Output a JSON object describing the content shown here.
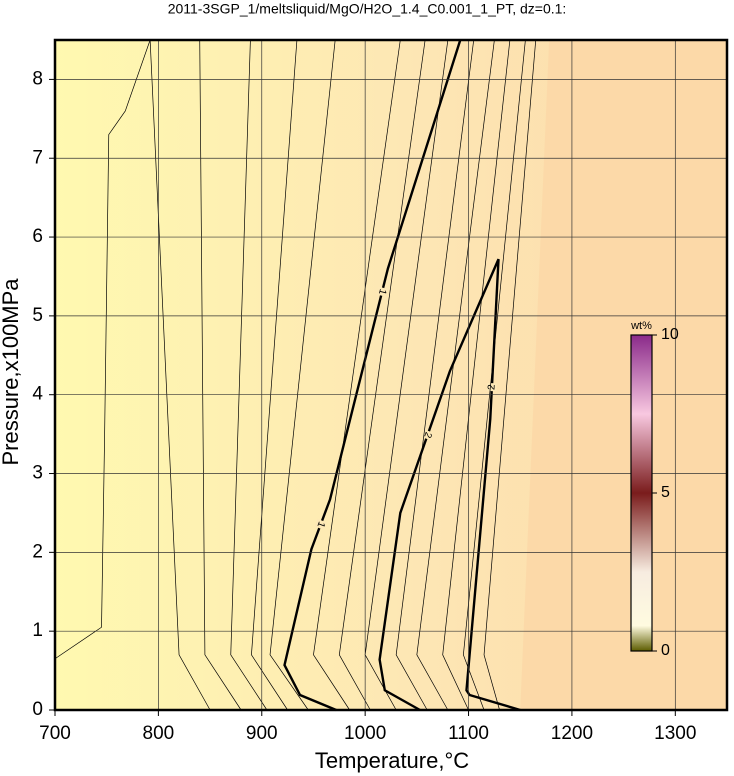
{
  "chart_data": {
    "type": "contour",
    "title": "2011-3SGP_1/meltsliquid/MgO/H2O_1.4_C0.001_1_PT, dz=0.1:",
    "xlabel": "Temperature,°C",
    "ylabel": "Pressure,x100MPa",
    "xlim": [
      700,
      1350
    ],
    "ylim": [
      0,
      8.5
    ],
    "xticks": [
      700,
      800,
      900,
      1000,
      1100,
      1200,
      1300
    ],
    "yticks": [
      0,
      1,
      2,
      3,
      4,
      5,
      6,
      7,
      8
    ],
    "grid": true,
    "contours": [
      {
        "level": 1,
        "x": [
          972,
          937,
          922,
          948,
          966,
          1022,
          1092
        ],
        "y": [
          0,
          0.19,
          0.57,
          2.04,
          2.67,
          5.6,
          8.5
        ]
      },
      {
        "level": 2,
        "x": [
          1053,
          1019,
          1014,
          1034,
          1082,
          1129,
          1121,
          1098,
          1101,
          1150
        ],
        "y": [
          0,
          0.25,
          0.64,
          2.5,
          4.3,
          5.72,
          3.69,
          0.25,
          0.19,
          0
        ]
      },
      {
        "x": [
          700,
          745,
          748,
          752,
          768,
          792
        ],
        "y": [
          0.65,
          1.05,
          3.5,
          7.3,
          7.6,
          8.5
        ]
      },
      {
        "x": [
          850,
          820,
          792
        ],
        "y": [
          0,
          0.7,
          8.5
        ]
      },
      {
        "x": [
          880,
          845,
          840
        ],
        "y": [
          0,
          0.7,
          8.5
        ]
      },
      {
        "x": [
          905,
          870,
          889
        ],
        "y": [
          0,
          0.7,
          8.5
        ]
      },
      {
        "x": [
          925,
          890,
          934
        ],
        "y": [
          0,
          0.7,
          8.5
        ]
      },
      {
        "x": [
          945,
          908,
          971
        ],
        "y": [
          0,
          0.7,
          8.5
        ]
      },
      {
        "x": [
          985,
          950,
          1034
        ],
        "y": [
          0,
          0.7,
          8.5
        ]
      },
      {
        "x": [
          1005,
          975,
          1058
        ],
        "y": [
          0,
          0.7,
          8.5
        ]
      },
      {
        "x": [
          1030,
          1000,
          1080
        ],
        "y": [
          0,
          0.7,
          8.5
        ]
      },
      {
        "x": [
          1060,
          1030,
          1105
        ],
        "y": [
          0,
          0.7,
          8.5
        ]
      },
      {
        "x": [
          1080,
          1050,
          1125
        ],
        "y": [
          0,
          0.7,
          8.5
        ]
      },
      {
        "x": [
          1100,
          1075,
          1140
        ],
        "y": [
          0,
          0.7,
          8.5
        ]
      },
      {
        "x": [
          1115,
          1095,
          1155
        ],
        "y": [
          0,
          0.7,
          8.5
        ]
      },
      {
        "x": [
          1130,
          1115,
          1165
        ],
        "y": [
          0,
          0.7,
          8.5
        ]
      }
    ],
    "colorbar": {
      "label": "wt%",
      "lim": [
        0,
        10
      ],
      "ticks": [
        0,
        5,
        10
      ]
    }
  }
}
